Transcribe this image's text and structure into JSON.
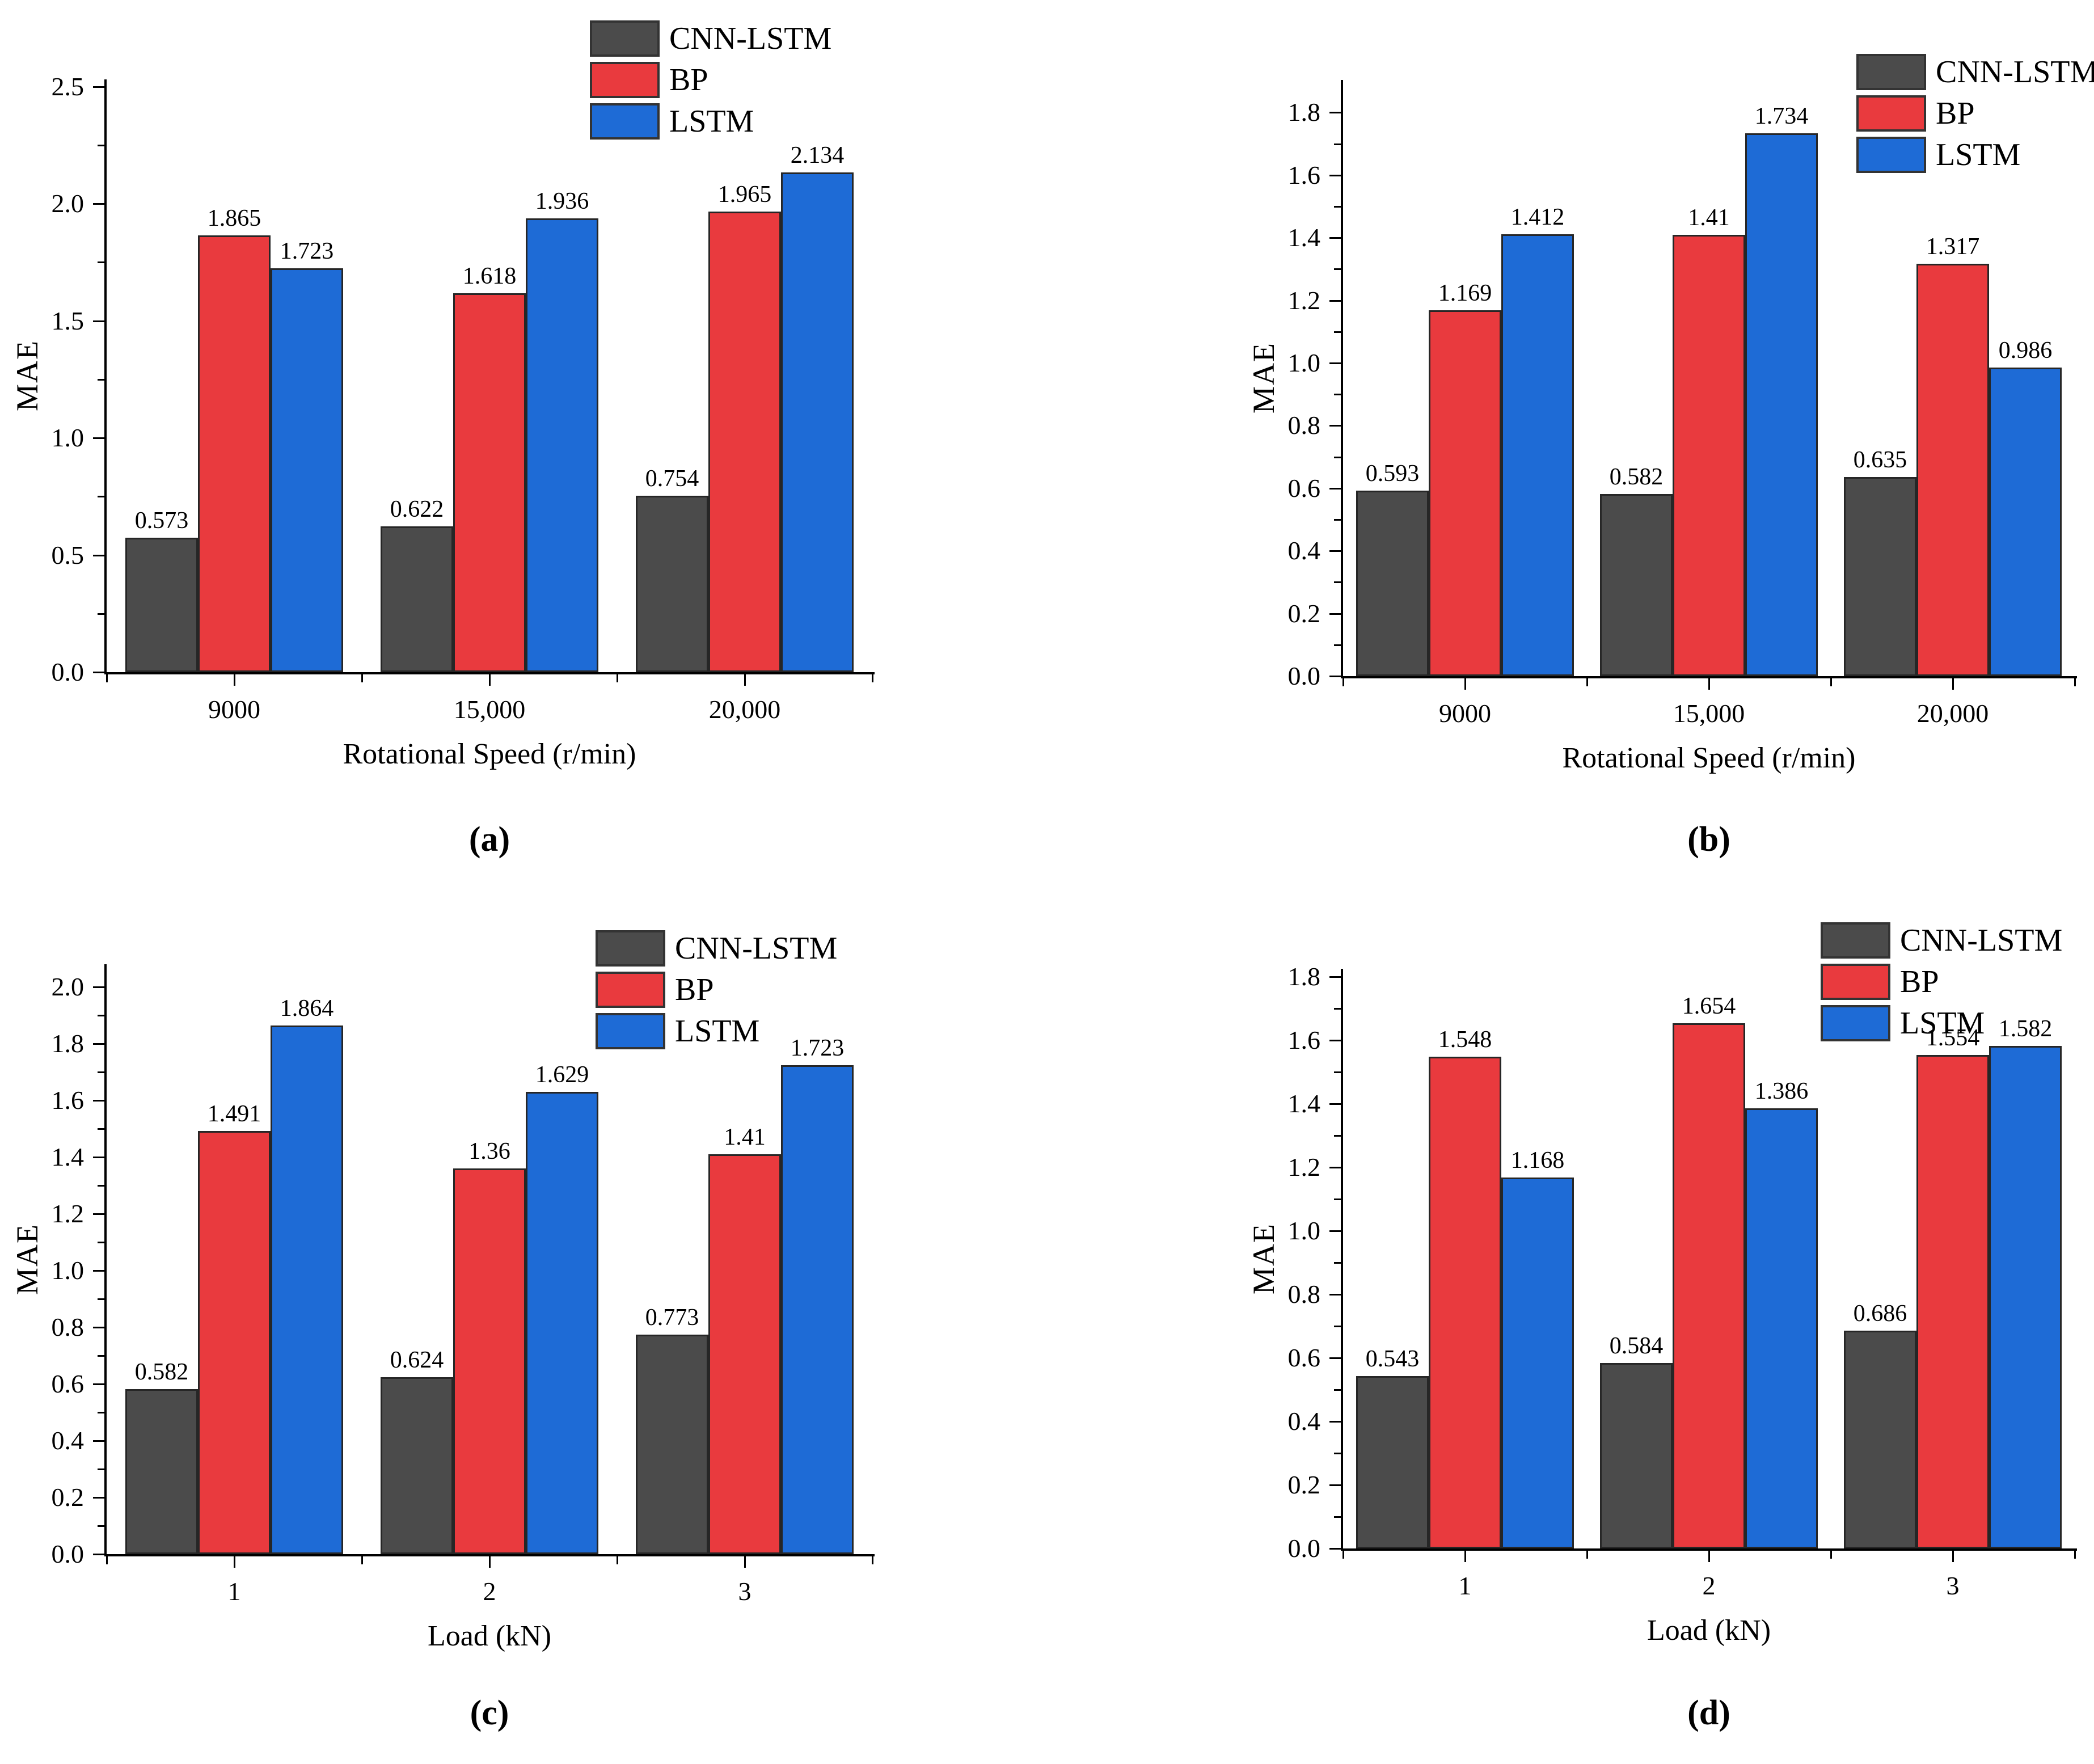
{
  "page": {
    "background": "#ffffff"
  },
  "colors": {
    "cnn_lstm": "#4b4b4b",
    "bp": "#e93a3e",
    "lstm": "#1e6bd6",
    "bar_border": "#262626",
    "axis": "#000000",
    "legend_border": "#333333"
  },
  "chart_data": [
    {
      "id": "a",
      "type": "bar",
      "caption": "(a)",
      "xlabel": "Rotational Speed (r/min)",
      "ylabel": "MAE",
      "categories": [
        "9000",
        "15,000",
        "20,000"
      ],
      "series": [
        {
          "name": "CNN-LSTM",
          "color": "#4b4b4b",
          "values": [
            0.573,
            0.622,
            0.754
          ],
          "labels": [
            "0.573",
            "0.622",
            "0.754"
          ]
        },
        {
          "name": "BP",
          "color": "#e93a3e",
          "values": [
            1.865,
            1.618,
            1.965
          ],
          "labels": [
            "1.865",
            "1.618",
            "1.965"
          ]
        },
        {
          "name": "LSTM",
          "color": "#1e6bd6",
          "values": [
            1.723,
            1.936,
            2.134
          ],
          "labels": [
            "1.723",
            "1.936",
            "2.134"
          ]
        }
      ],
      "yaxis": {
        "min": 0,
        "max": 2.5,
        "step": 0.5,
        "minor_step": 0.25,
        "tick_decimals": 1
      },
      "ylim": [
        0,
        2.53
      ],
      "grid": false,
      "legend_position": "top-right"
    },
    {
      "id": "b",
      "type": "bar",
      "caption": "(b)",
      "xlabel": "Rotational Speed (r/min)",
      "ylabel": "MAE",
      "categories": [
        "9000",
        "15,000",
        "20,000"
      ],
      "series": [
        {
          "name": "CNN-LSTM",
          "color": "#4b4b4b",
          "values": [
            0.593,
            0.582,
            0.635
          ],
          "labels": [
            "0.593",
            "0.582",
            "0.635"
          ]
        },
        {
          "name": "BP",
          "color": "#e93a3e",
          "values": [
            1.169,
            1.41,
            1.317
          ],
          "labels": [
            "1.169",
            "1.41",
            "1.317"
          ]
        },
        {
          "name": "LSTM",
          "color": "#1e6bd6",
          "values": [
            1.412,
            1.734,
            0.986
          ],
          "labels": [
            "1.412",
            "1.734",
            "0.986"
          ]
        }
      ],
      "yaxis": {
        "min": 0,
        "max": 1.8,
        "step": 0.2,
        "minor_step": 0.1,
        "tick_decimals": 1
      },
      "ylim": [
        0,
        1.9
      ],
      "grid": false,
      "legend_position": "top-right"
    },
    {
      "id": "c",
      "type": "bar",
      "caption": "(c)",
      "xlabel": "Load (kN)",
      "ylabel": "MAE",
      "categories": [
        "1",
        "2",
        "3"
      ],
      "series": [
        {
          "name": "CNN-LSTM",
          "color": "#4b4b4b",
          "values": [
            0.582,
            0.624,
            0.773
          ],
          "labels": [
            "0.582",
            "0.624",
            "0.773"
          ]
        },
        {
          "name": "BP",
          "color": "#e93a3e",
          "values": [
            1.491,
            1.36,
            1.41
          ],
          "labels": [
            "1.491",
            "1.36",
            "1.41"
          ]
        },
        {
          "name": "LSTM",
          "color": "#1e6bd6",
          "values": [
            1.864,
            1.629,
            1.723
          ],
          "labels": [
            "1.864",
            "1.629",
            "1.723"
          ]
        }
      ],
      "yaxis": {
        "min": 0,
        "max": 2.0,
        "step": 0.2,
        "minor_step": 0.1,
        "tick_decimals": 1
      },
      "ylim": [
        0,
        2.08
      ],
      "grid": false,
      "legend_position": "top-right"
    },
    {
      "id": "d",
      "type": "bar",
      "caption": "(d)",
      "xlabel": "Load (kN)",
      "ylabel": "MAE",
      "categories": [
        "1",
        "2",
        "3"
      ],
      "series": [
        {
          "name": "CNN-LSTM",
          "color": "#4b4b4b",
          "values": [
            0.543,
            0.584,
            0.686
          ],
          "labels": [
            "0.543",
            "0.584",
            "0.686"
          ]
        },
        {
          "name": "BP",
          "color": "#e93a3e",
          "values": [
            1.548,
            1.654,
            1.554
          ],
          "labels": [
            "1.548",
            "1.654",
            "1.554"
          ]
        },
        {
          "name": "LSTM",
          "color": "#1e6bd6",
          "values": [
            1.168,
            1.386,
            1.582
          ],
          "labels": [
            "1.168",
            "1.386",
            "1.582"
          ]
        }
      ],
      "yaxis": {
        "min": 0,
        "max": 1.8,
        "step": 0.2,
        "minor_step": 0.1,
        "tick_decimals": 1
      },
      "ylim": [
        0,
        1.82
      ],
      "grid": false,
      "legend_position": "top-right"
    }
  ]
}
